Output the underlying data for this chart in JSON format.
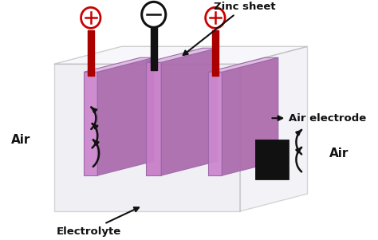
{
  "bg_color": "#ffffff",
  "labels": {
    "zinc_sheet": "Zinc sheet",
    "air_electrode": "Air electrode",
    "electrolyte": "Electrolyte",
    "air_left": "Air",
    "air_right": "Air"
  },
  "colors": {
    "box_face_front": "#dcdce8",
    "box_face_right": "#e4e4ee",
    "box_face_top": "#f2f2f8",
    "box_edge": "#aaaaaa",
    "purple_front": "#cc88cc",
    "purple_dark": "#aa66aa",
    "purple_light": "#e0bbe0",
    "purple_side": "#bb88bb",
    "red_rod": "#aa0000",
    "black_rod": "#111111",
    "black_square": "#111111",
    "arrow_color": "#111111",
    "text_color": "#111111",
    "plus_color": "#cc0000",
    "minus_color": "#111111"
  },
  "figsize": [
    4.74,
    3.01
  ],
  "dpi": 100
}
